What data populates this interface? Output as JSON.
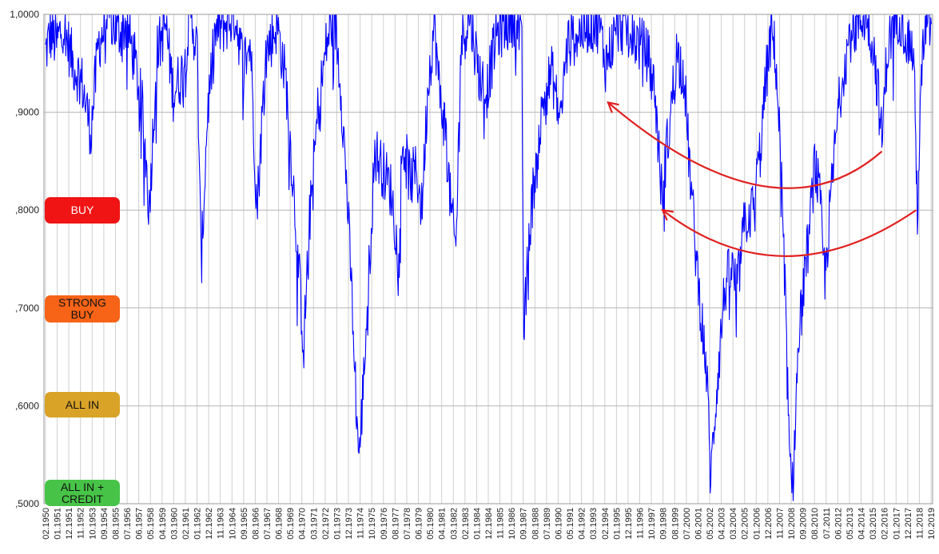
{
  "chart_data": {
    "type": "line",
    "title": "",
    "xlabel": "",
    "ylabel": "",
    "ylim": [
      0.5,
      1.0
    ],
    "y_ticks": [
      ",5000",
      ",6000",
      ",7000",
      ",8000",
      ",9000",
      "1,0000"
    ],
    "y_tick_values": [
      0.5,
      0.6,
      0.7,
      0.8,
      0.9,
      1.0
    ],
    "grid": true,
    "x_tick_labels": [
      "02.1950",
      "01.1951",
      "12.1951",
      "11.1952",
      "10.1953",
      "09.1954",
      "08.1955",
      "07.1956",
      "06.1957",
      "05.1958",
      "04.1959",
      "03.1960",
      "02.1961",
      "01.1962",
      "12.1962",
      "11.1963",
      "10.1964",
      "09.1965",
      "08.1966",
      "07.1967",
      "06.1968",
      "05.1969",
      "04.1970",
      "03.1971",
      "02.1972",
      "01.1973",
      "12.1973",
      "11.1974",
      "10.1975",
      "09.1976",
      "08.1977",
      "07.1978",
      "06.1979",
      "05.1980",
      "04.1981",
      "03.1982",
      "02.1983",
      "01.1984",
      "12.1984",
      "11.1985",
      "10.1986",
      "09.1987",
      "08.1988",
      "07.1989",
      "06.1990",
      "05.1991",
      "04.1992",
      "03.1993",
      "02.1994",
      "01.1995",
      "12.1995",
      "11.1996",
      "10.1997",
      "09.1998",
      "08.1999",
      "07.2000",
      "06.2001",
      "05.2002",
      "04.2003",
      "03.2004",
      "02.2005",
      "01.2006",
      "12.2006",
      "11.2007",
      "10.2008",
      "09.2009",
      "08.2010",
      "07.2011",
      "06.2012",
      "05.2013",
      "04.2014",
      "03.2015",
      "02.2016",
      "01.2017",
      "12.2017",
      "11.2018",
      "10.2019"
    ],
    "series": [
      {
        "color": "#0000ff",
        "x": [
          1950.1,
          1950.5,
          1951.0,
          1951.5,
          1952.3,
          1953.0,
          1953.7,
          1954.3,
          1955.2,
          1955.8,
          1956.5,
          1957.2,
          1957.8,
          1958.3,
          1958.9,
          1959.6,
          1960.2,
          1960.9,
          1961.6,
          1962.1,
          1962.4,
          1962.9,
          1963.5,
          1964.3,
          1965.1,
          1965.7,
          1966.3,
          1966.8,
          1967.5,
          1968.4,
          1969.1,
          1969.7,
          1970.3,
          1970.5,
          1970.9,
          1971.6,
          1972.3,
          1972.9,
          1973.4,
          1973.9,
          1974.4,
          1974.7,
          1974.9,
          1975.5,
          1976.1,
          1976.8,
          1977.4,
          1977.9,
          1978.3,
          1978.9,
          1979.4,
          1979.8,
          1980.3,
          1980.8,
          1981.2,
          1981.7,
          1982.1,
          1982.5,
          1982.9,
          1983.6,
          1984.3,
          1984.9,
          1985.7,
          1986.5,
          1987.3,
          1987.7,
          1987.85,
          1988.3,
          1988.9,
          1989.5,
          1990.1,
          1990.7,
          1991.3,
          1992.1,
          1993.0,
          1993.8,
          1994.3,
          1994.8,
          1995.4,
          1996.2,
          1997.0,
          1997.6,
          1998.2,
          1998.7,
          1999.3,
          1999.9,
          2000.5,
          2000.9,
          2001.4,
          2001.8,
          2002.3,
          2002.6,
          2002.8,
          2003.2,
          2003.7,
          2004.2,
          2004.7,
          2005.3,
          2005.9,
          2006.5,
          2007.0,
          2007.4,
          2007.7,
          2008.1,
          2008.5,
          2008.8,
          2009.0,
          2009.2,
          2009.5,
          2009.9,
          2010.4,
          2010.8,
          2011.2,
          2011.6,
          2012.0,
          2012.5,
          2013.0,
          2013.6,
          2014.2,
          2014.8,
          2015.4,
          2015.8,
          2016.1,
          2016.5,
          2017.0,
          2017.5,
          2018.0,
          2018.6,
          2018.9,
          2019.3,
          2019.7,
          2020.0
        ],
        "y": [
          0.96,
          0.98,
          0.97,
          0.99,
          0.95,
          0.93,
          0.88,
          0.97,
          1.0,
          0.98,
          0.99,
          0.95,
          0.9,
          0.8,
          0.96,
          0.99,
          0.92,
          0.94,
          1.0,
          0.96,
          0.74,
          0.9,
          0.98,
          0.99,
          1.0,
          0.95,
          0.97,
          0.8,
          0.96,
          0.99,
          0.93,
          0.82,
          0.7,
          0.66,
          0.78,
          0.9,
          0.97,
          1.0,
          0.93,
          0.82,
          0.68,
          0.58,
          0.55,
          0.7,
          0.86,
          0.84,
          0.82,
          0.76,
          0.87,
          0.83,
          0.84,
          0.8,
          0.93,
          0.99,
          0.92,
          0.88,
          0.8,
          0.76,
          0.97,
          1.0,
          0.94,
          0.92,
          0.98,
          0.99,
          1.0,
          0.96,
          0.67,
          0.78,
          0.86,
          0.92,
          0.94,
          0.89,
          0.97,
          0.98,
          0.99,
          0.99,
          0.95,
          0.97,
          0.99,
          0.98,
          0.97,
          0.96,
          0.92,
          0.82,
          0.88,
          0.96,
          0.94,
          0.85,
          0.76,
          0.7,
          0.63,
          0.52,
          0.57,
          0.64,
          0.72,
          0.74,
          0.72,
          0.79,
          0.8,
          0.86,
          0.94,
          0.98,
          0.96,
          0.86,
          0.7,
          0.55,
          0.5,
          0.56,
          0.66,
          0.72,
          0.78,
          0.85,
          0.81,
          0.73,
          0.8,
          0.88,
          0.94,
          0.98,
          0.99,
          1.0,
          0.97,
          0.92,
          0.87,
          0.96,
          0.99,
          1.0,
          0.98,
          0.96,
          0.8,
          0.96,
          0.99,
          0.99
        ]
      }
    ],
    "annotations": [
      {
        "type": "arrow",
        "color": "#e02020",
        "from": [
          2016.1,
          0.86
        ],
        "to": [
          1994.5,
          0.91
        ],
        "via": [
          2006.5,
          0.825
        ]
      },
      {
        "type": "arrow",
        "color": "#e02020",
        "from": [
          2018.8,
          0.8
        ],
        "to": [
          1998.8,
          0.8
        ],
        "via": [
          2008.5,
          0.753
        ]
      }
    ]
  },
  "zones": [
    {
      "label": "BUY",
      "color": "#f01414",
      "level": 0.8
    },
    {
      "label": "STRONG BUY",
      "color": "#f76317",
      "level": 0.7
    },
    {
      "label": "ALL IN",
      "color": "#d9a328",
      "level": 0.6
    },
    {
      "label": "ALL IN + CREDIT",
      "color": "#47c447",
      "level": 0.51
    }
  ]
}
